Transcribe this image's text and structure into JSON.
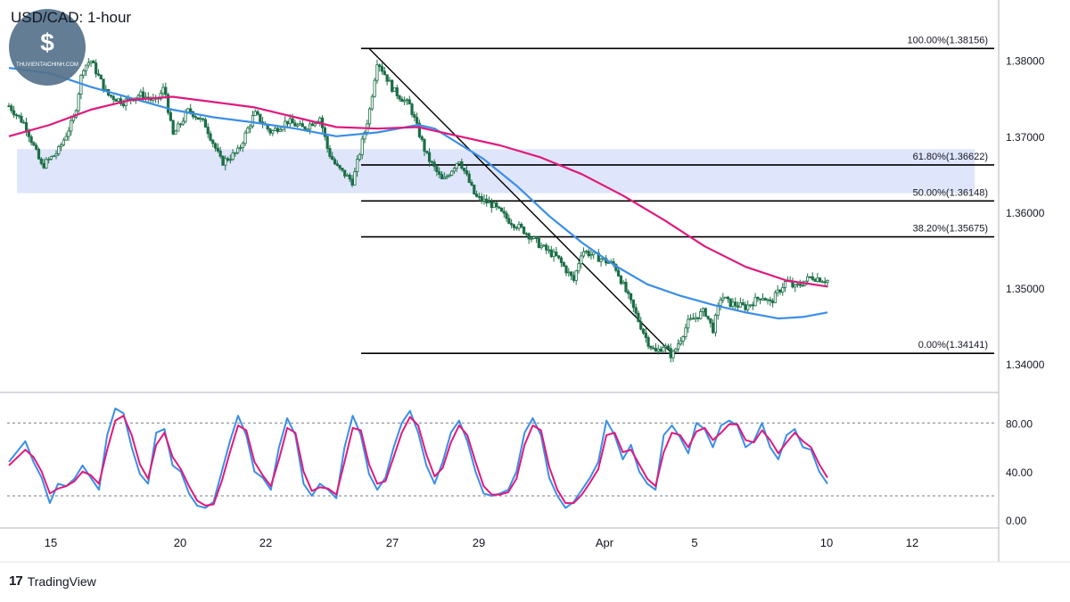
{
  "title": "USD/CAD: 1-hour",
  "watermark": {
    "text": "THUVIENTAICHINH.COM",
    "symbol": "$"
  },
  "branding": {
    "logo_icon": "tradingview-logo-icon",
    "mark": "17",
    "label": "TradingView"
  },
  "colors": {
    "candle": "#1b6e46",
    "ma_fast": "#3a8ee8",
    "ma_slow": "#e0197d",
    "stoch_k": "#3a8ee8",
    "stoch_d": "#e0197d",
    "zone": "#dbe2f9",
    "axis_text": "#131722",
    "grid": "#b2b5be",
    "watermark_bg": "#55728c"
  },
  "chart_data": [
    {
      "type": "line",
      "title": "USD/CAD: 1-hour",
      "x_tick_labels": [
        "15",
        "20",
        "22",
        "27",
        "29",
        "Apr",
        "5",
        "10",
        "12"
      ],
      "ylim": [
        1.3365,
        1.387
      ],
      "y_tick_labels": [
        "1.38000",
        "1.37000",
        "1.36000",
        "1.35000",
        "1.34000"
      ],
      "y_ticks": [
        1.38,
        1.37,
        1.36,
        1.35,
        1.34
      ],
      "price_x_range": [
        0,
        100
      ],
      "price_path": [
        [
          0,
          1.374
        ],
        [
          2,
          1.3715
        ],
        [
          4,
          1.366
        ],
        [
          6,
          1.368
        ],
        [
          8,
          1.3725
        ],
        [
          9,
          1.379
        ],
        [
          10,
          1.38
        ],
        [
          12,
          1.3755
        ],
        [
          14,
          1.3745
        ],
        [
          16,
          1.3755
        ],
        [
          18,
          1.3745
        ],
        [
          19,
          1.3765
        ],
        [
          20,
          1.37
        ],
        [
          22,
          1.3735
        ],
        [
          24,
          1.3715
        ],
        [
          26,
          1.3665
        ],
        [
          28,
          1.368
        ],
        [
          30,
          1.373
        ],
        [
          32,
          1.3705
        ],
        [
          34,
          1.372
        ],
        [
          36,
          1.371
        ],
        [
          38,
          1.3725
        ],
        [
          39,
          1.368
        ],
        [
          40,
          1.366
        ],
        [
          42,
          1.364
        ],
        [
          44,
          1.373
        ],
        [
          45,
          1.38
        ],
        [
          47,
          1.376
        ],
        [
          49,
          1.374
        ],
        [
          51,
          1.3675
        ],
        [
          53,
          1.364
        ],
        [
          55,
          1.367
        ],
        [
          57,
          1.362
        ],
        [
          59,
          1.361
        ],
        [
          61,
          1.359
        ],
        [
          63,
          1.3575
        ],
        [
          65,
          1.3555
        ],
        [
          67,
          1.354
        ],
        [
          69,
          1.351
        ],
        [
          70,
          1.355
        ],
        [
          72,
          1.354
        ],
        [
          74,
          1.353
        ],
        [
          76,
          1.348
        ],
        [
          78,
          1.343
        ],
        [
          79,
          1.3415
        ],
        [
          80,
          1.3425
        ],
        [
          81,
          1.341
        ],
        [
          83,
          1.3455
        ],
        [
          85,
          1.347
        ],
        [
          86,
          1.3445
        ],
        [
          87,
          1.349
        ],
        [
          88,
          1.348
        ],
        [
          90,
          1.3475
        ],
        [
          92,
          1.349
        ],
        [
          93,
          1.348
        ],
        [
          95,
          1.351
        ],
        [
          96,
          1.35
        ],
        [
          98,
          1.3515
        ],
        [
          100,
          1.351
        ]
      ],
      "series": [
        {
          "x": [
            0,
            5,
            10,
            15,
            20,
            25,
            30,
            35,
            40,
            45,
            50,
            52,
            55,
            58,
            62,
            66,
            70,
            74,
            78,
            82,
            86,
            90,
            94,
            97,
            100
          ],
          "values": [
            1.379,
            1.3783,
            1.3765,
            1.375,
            1.3735,
            1.3725,
            1.3718,
            1.371,
            1.37,
            1.3705,
            1.3715,
            1.371,
            1.369,
            1.367,
            1.3635,
            1.3595,
            1.356,
            1.353,
            1.3505,
            1.349,
            1.3478,
            1.3468,
            1.346,
            1.3462,
            1.3468
          ]
        },
        {
          "x": [
            0,
            5,
            10,
            15,
            20,
            25,
            30,
            35,
            40,
            45,
            50,
            55,
            60,
            65,
            70,
            75,
            80,
            85,
            90,
            95,
            100
          ],
          "values": [
            1.37,
            1.3715,
            1.3735,
            1.3748,
            1.3752,
            1.3745,
            1.3738,
            1.3725,
            1.3712,
            1.371,
            1.3712,
            1.37,
            1.3688,
            1.3672,
            1.365,
            1.3622,
            1.359,
            1.3555,
            1.3528,
            1.351,
            1.3502
          ]
        }
      ],
      "support_zone": {
        "y_top": 1.3683,
        "y_bottom": 1.3625,
        "x_start": 1,
        "x_end": 118
      },
      "trendline": {
        "from": [
          44,
          1.38156
        ],
        "to": [
          81,
          1.34141
        ]
      },
      "fibonacci_levels": [
        {
          "label": "100.00%(1.38156)",
          "value": 1.38156
        },
        {
          "label": "61.80%(1.36622)",
          "value": 1.36622
        },
        {
          "label": "50.00%(1.36148)",
          "value": 1.36148
        },
        {
          "label": "38.20%(1.35675)",
          "value": 1.35675
        },
        {
          "label": "0.00%(1.34141)",
          "value": 1.34141
        }
      ]
    },
    {
      "type": "line",
      "ylim": [
        -5,
        103
      ],
      "y_tick_labels": [
        "80.00",
        "40.00",
        "0.00"
      ],
      "y_ticks": [
        80,
        40,
        0
      ],
      "guide_levels": [
        80,
        20
      ],
      "stoch_x_range": [
        0,
        100
      ],
      "stoch_k": [
        [
          0,
          48
        ],
        [
          2,
          65
        ],
        [
          3,
          48
        ],
        [
          4,
          35
        ],
        [
          5,
          14
        ],
        [
          6,
          30
        ],
        [
          7,
          28
        ],
        [
          8,
          34
        ],
        [
          9,
          45
        ],
        [
          10,
          35
        ],
        [
          11,
          25
        ],
        [
          12,
          70
        ],
        [
          13,
          92
        ],
        [
          14,
          88
        ],
        [
          15,
          60
        ],
        [
          16,
          38
        ],
        [
          17,
          30
        ],
        [
          18,
          72
        ],
        [
          19,
          75
        ],
        [
          20,
          45
        ],
        [
          21,
          40
        ],
        [
          22,
          22
        ],
        [
          23,
          12
        ],
        [
          24,
          10
        ],
        [
          25,
          15
        ],
        [
          26,
          40
        ],
        [
          27,
          65
        ],
        [
          28,
          86
        ],
        [
          29,
          70
        ],
        [
          30,
          40
        ],
        [
          31,
          35
        ],
        [
          32,
          25
        ],
        [
          33,
          60
        ],
        [
          34,
          84
        ],
        [
          35,
          70
        ],
        [
          36,
          30
        ],
        [
          37,
          20
        ],
        [
          38,
          30
        ],
        [
          39,
          25
        ],
        [
          40,
          18
        ],
        [
          41,
          60
        ],
        [
          42,
          86
        ],
        [
          43,
          70
        ],
        [
          44,
          38
        ],
        [
          45,
          25
        ],
        [
          46,
          35
        ],
        [
          47,
          60
        ],
        [
          48,
          80
        ],
        [
          49,
          90
        ],
        [
          50,
          72
        ],
        [
          51,
          45
        ],
        [
          52,
          30
        ],
        [
          53,
          48
        ],
        [
          54,
          72
        ],
        [
          55,
          82
        ],
        [
          56,
          65
        ],
        [
          57,
          40
        ],
        [
          58,
          22
        ],
        [
          59,
          20
        ],
        [
          60,
          22
        ],
        [
          61,
          25
        ],
        [
          62,
          40
        ],
        [
          63,
          72
        ],
        [
          64,
          84
        ],
        [
          65,
          70
        ],
        [
          66,
          35
        ],
        [
          67,
          20
        ],
        [
          68,
          10
        ],
        [
          69,
          15
        ],
        [
          70,
          25
        ],
        [
          71,
          35
        ],
        [
          72,
          48
        ],
        [
          73,
          82
        ],
        [
          74,
          70
        ],
        [
          75,
          50
        ],
        [
          76,
          62
        ],
        [
          77,
          40
        ],
        [
          78,
          30
        ],
        [
          79,
          25
        ],
        [
          80,
          70
        ],
        [
          81,
          78
        ],
        [
          82,
          68
        ],
        [
          83,
          55
        ],
        [
          84,
          80
        ],
        [
          85,
          75
        ],
        [
          86,
          60
        ],
        [
          87,
          78
        ],
        [
          88,
          82
        ],
        [
          89,
          78
        ],
        [
          90,
          60
        ],
        [
          91,
          65
        ],
        [
          92,
          80
        ],
        [
          93,
          60
        ],
        [
          94,
          50
        ],
        [
          95,
          70
        ],
        [
          96,
          75
        ],
        [
          97,
          60
        ],
        [
          98,
          58
        ],
        [
          99,
          40
        ],
        [
          100,
          30
        ]
      ],
      "stoch_d": [
        [
          0,
          45
        ],
        [
          2,
          58
        ],
        [
          3,
          52
        ],
        [
          4,
          40
        ],
        [
          5,
          22
        ],
        [
          6,
          26
        ],
        [
          7,
          28
        ],
        [
          8,
          32
        ],
        [
          9,
          40
        ],
        [
          10,
          37
        ],
        [
          11,
          30
        ],
        [
          12,
          58
        ],
        [
          13,
          82
        ],
        [
          14,
          86
        ],
        [
          15,
          70
        ],
        [
          16,
          46
        ],
        [
          17,
          34
        ],
        [
          18,
          62
        ],
        [
          19,
          72
        ],
        [
          20,
          52
        ],
        [
          21,
          42
        ],
        [
          22,
          28
        ],
        [
          23,
          16
        ],
        [
          24,
          12
        ],
        [
          25,
          13
        ],
        [
          26,
          32
        ],
        [
          27,
          56
        ],
        [
          28,
          78
        ],
        [
          29,
          74
        ],
        [
          30,
          48
        ],
        [
          31,
          37
        ],
        [
          32,
          28
        ],
        [
          33,
          50
        ],
        [
          34,
          76
        ],
        [
          35,
          72
        ],
        [
          36,
          40
        ],
        [
          37,
          24
        ],
        [
          38,
          27
        ],
        [
          39,
          26
        ],
        [
          40,
          21
        ],
        [
          41,
          48
        ],
        [
          42,
          76
        ],
        [
          43,
          74
        ],
        [
          44,
          46
        ],
        [
          45,
          30
        ],
        [
          46,
          32
        ],
        [
          47,
          52
        ],
        [
          48,
          72
        ],
        [
          49,
          85
        ],
        [
          50,
          78
        ],
        [
          51,
          54
        ],
        [
          52,
          36
        ],
        [
          53,
          43
        ],
        [
          54,
          64
        ],
        [
          55,
          78
        ],
        [
          56,
          70
        ],
        [
          57,
          48
        ],
        [
          58,
          28
        ],
        [
          59,
          21
        ],
        [
          60,
          21
        ],
        [
          61,
          23
        ],
        [
          62,
          34
        ],
        [
          63,
          62
        ],
        [
          64,
          78
        ],
        [
          65,
          74
        ],
        [
          66,
          44
        ],
        [
          67,
          25
        ],
        [
          68,
          14
        ],
        [
          69,
          14
        ],
        [
          70,
          21
        ],
        [
          71,
          31
        ],
        [
          72,
          42
        ],
        [
          73,
          70
        ],
        [
          74,
          72
        ],
        [
          75,
          56
        ],
        [
          76,
          58
        ],
        [
          77,
          46
        ],
        [
          78,
          34
        ],
        [
          79,
          28
        ],
        [
          80,
          56
        ],
        [
          81,
          72
        ],
        [
          82,
          70
        ],
        [
          83,
          60
        ],
        [
          84,
          73
        ],
        [
          85,
          76
        ],
        [
          86,
          66
        ],
        [
          87,
          72
        ],
        [
          88,
          79
        ],
        [
          89,
          79
        ],
        [
          90,
          66
        ],
        [
          91,
          64
        ],
        [
          92,
          74
        ],
        [
          93,
          66
        ],
        [
          94,
          55
        ],
        [
          95,
          64
        ],
        [
          96,
          72
        ],
        [
          97,
          65
        ],
        [
          98,
          60
        ],
        [
          99,
          46
        ],
        [
          100,
          35
        ]
      ]
    }
  ]
}
